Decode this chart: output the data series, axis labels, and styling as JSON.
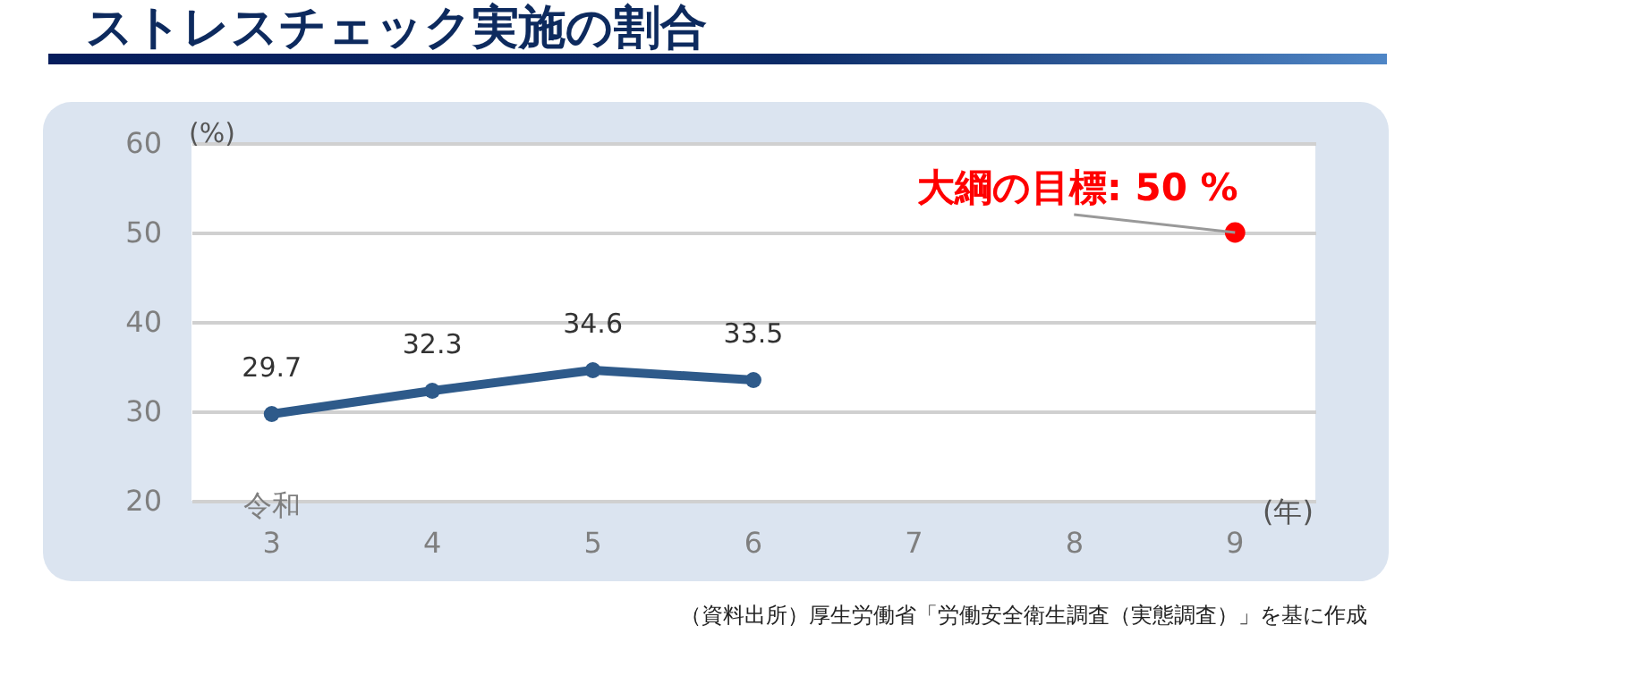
{
  "chart_data": {
    "type": "line",
    "title": "ストレスチェック実施の割合",
    "xlabel": "(年)",
    "ylabel": "(%)",
    "categories": [
      "令和\n3",
      "4",
      "5",
      "6",
      "7",
      "8",
      "9"
    ],
    "series": [
      {
        "color": "#2e5a8a",
        "values": [
          29.7,
          32.3,
          34.6,
          33.5,
          null,
          null,
          null
        ],
        "value_labels": [
          "29.7",
          "32.3",
          "34.6",
          "33.5",
          null,
          null,
          null
        ]
      },
      {
        "type": "scatter",
        "color": "#ff0000",
        "x": [
          "9"
        ],
        "values": [
          50
        ]
      }
    ],
    "ylim": [
      20,
      60
    ],
    "yticks": [
      20,
      30,
      40,
      50,
      60
    ],
    "grid": "y",
    "marker": "circle",
    "annotations": [
      {
        "text": "大綱の目標: 50 %",
        "x": "9",
        "y": 50
      },
      "（資料出所）厚生労働省「労働安全衛生調査（実態調査）」を基に作成"
    ]
  }
}
